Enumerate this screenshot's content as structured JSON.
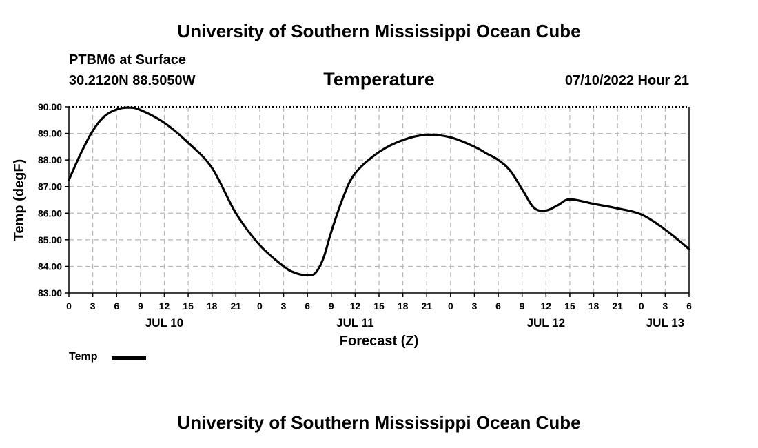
{
  "header": {
    "title": "University of Southern Mississippi Ocean Cube",
    "station": "PTBM6 at Surface",
    "coords": "30.2120N  88.5050W",
    "datetime": "07/10/2022 Hour 21"
  },
  "footer": {
    "title": "University of Southern Mississippi Ocean Cube"
  },
  "legend": {
    "label": "Temp"
  },
  "chart_data": {
    "type": "line",
    "title": "Temperature",
    "xlabel": "Forecast (Z)",
    "ylabel": "Temp (degF)",
    "ylim": [
      83,
      90
    ],
    "xlim": [
      0,
      78
    ],
    "x_units": "hours from 00Z JUL 10",
    "grid": true,
    "legend_position": "bottom-left",
    "y_ticks": [
      "83.00",
      "84.00",
      "85.00",
      "86.00",
      "87.00",
      "88.00",
      "89.00",
      "90.00"
    ],
    "x_tick_labels": [
      "0",
      "3",
      "6",
      "9",
      "12",
      "15",
      "18",
      "21",
      "0",
      "3",
      "6",
      "9",
      "12",
      "15",
      "18",
      "21",
      "0",
      "3",
      "6",
      "9",
      "12",
      "15",
      "18",
      "21",
      "0",
      "3",
      "6"
    ],
    "date_labels": [
      {
        "label": "JUL 10",
        "x": 12
      },
      {
        "label": "JUL 11",
        "x": 36
      },
      {
        "label": "JUL 12",
        "x": 60
      },
      {
        "label": "JUL 13",
        "x": 75
      }
    ],
    "series": [
      {
        "name": "Temp",
        "color": "#000000",
        "x": [
          0,
          1.5,
          3,
          4.5,
          6,
          7.5,
          9,
          12,
          15,
          18,
          21,
          24,
          27,
          28.5,
          30,
          31,
          32,
          33,
          34.5,
          36,
          39,
          42,
          45,
          48,
          51,
          52.5,
          54,
          55.5,
          57,
          58.5,
          60,
          61.5,
          63,
          66,
          69,
          72,
          75,
          78
        ],
        "values": [
          87.25,
          88.25,
          89.1,
          89.65,
          89.9,
          89.97,
          89.88,
          89.4,
          88.65,
          87.7,
          86.0,
          84.8,
          84.0,
          83.75,
          83.67,
          83.75,
          84.3,
          85.3,
          86.6,
          87.5,
          88.3,
          88.75,
          88.95,
          88.85,
          88.5,
          88.25,
          88.0,
          87.6,
          86.9,
          86.2,
          86.1,
          86.3,
          86.52,
          86.35,
          86.18,
          85.95,
          85.38,
          84.65
        ]
      }
    ]
  }
}
